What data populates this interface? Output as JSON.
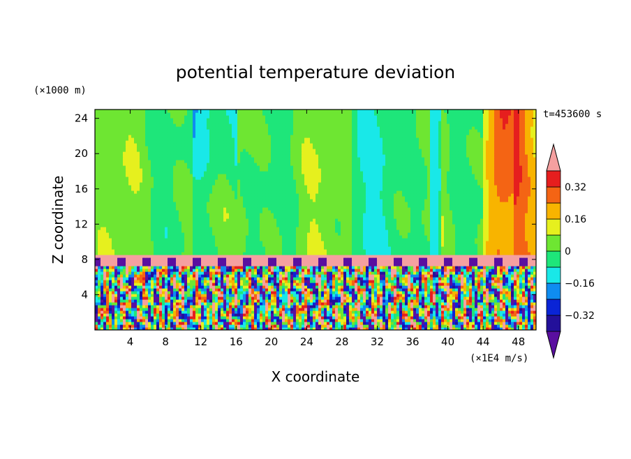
{
  "chart_data": {
    "type": "heatmap",
    "title": "potential temperature deviation",
    "xlabel": "X coordinate",
    "ylabel": "Z coordinate",
    "x_units": "(×1E4 m/s)",
    "y_units": "(×1000 m)",
    "time_label": "t=453600 s",
    "xlim": [
      0,
      50
    ],
    "ylim": [
      0,
      25
    ],
    "xticks": [
      4,
      8,
      12,
      16,
      20,
      24,
      28,
      32,
      36,
      40,
      44,
      48
    ],
    "yticks": [
      4,
      8,
      12,
      16,
      20,
      24
    ],
    "colorbar": {
      "levels": [
        -0.48,
        -0.4,
        -0.32,
        -0.24,
        -0.16,
        -0.08,
        0,
        0.08,
        0.16,
        0.24,
        0.32,
        0.4
      ],
      "tick_labels": [
        "0.32",
        "0.16",
        "0",
        "−0.16",
        "−0.32"
      ],
      "tick_values": [
        0.32,
        0.16,
        0,
        -0.16,
        -0.32
      ],
      "colors": [
        "#5a0fa0",
        "#23109a",
        "#0a24d6",
        "#0f8cf0",
        "#19e8e8",
        "#1ee67a",
        "#6ee632",
        "#e6f01e",
        "#f8b400",
        "#f46414",
        "#e61e1e",
        "#f5a0a0"
      ]
    },
    "description_regions": {
      "upper_band_z": [
        8.5,
        25
      ],
      "interface_z": [
        7.2,
        8.6
      ],
      "lower_turbulent_z": [
        0,
        7.2
      ]
    }
  }
}
